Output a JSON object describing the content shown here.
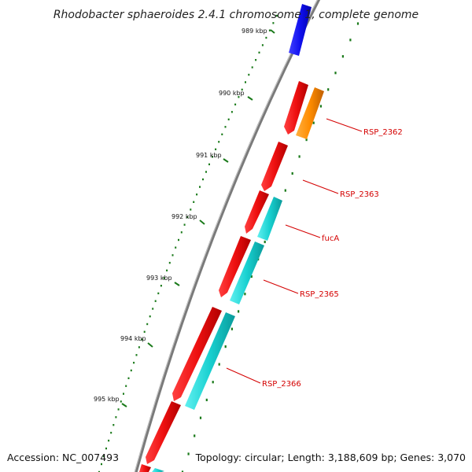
{
  "title": "Rhodobacter sphaeroides 2.4.1 chromosome 1, complete genome",
  "accession": "Accession: NC_007493",
  "topology": "Topology: circular; Length: 3,188,609 bp; Genes: 3,070",
  "ticks": [
    {
      "label": "989 kbp",
      "kbp": 989
    },
    {
      "label": "990 kbp",
      "kbp": 990
    },
    {
      "label": "991 kbp",
      "kbp": 991
    },
    {
      "label": "992 kbp",
      "kbp": 992
    },
    {
      "label": "993 kbp",
      "kbp": 993
    },
    {
      "label": "994 kbp",
      "kbp": 994
    },
    {
      "label": "995 kbp",
      "kbp": 995
    }
  ],
  "gene_labels": [
    "RSP_2362",
    "RSP_2363",
    "fucA",
    "RSP_2365",
    "RSP_2366"
  ],
  "colors": {
    "backbone": "#7a7a7a",
    "forward_feature": "#1010ee",
    "reverse_gene": "#ee1010",
    "forward_gene_orange": "#ff8c00",
    "forward_gene_cyan": "#18d0d0",
    "tick": "#1a7a1a",
    "gene_label": "#d40000"
  }
}
